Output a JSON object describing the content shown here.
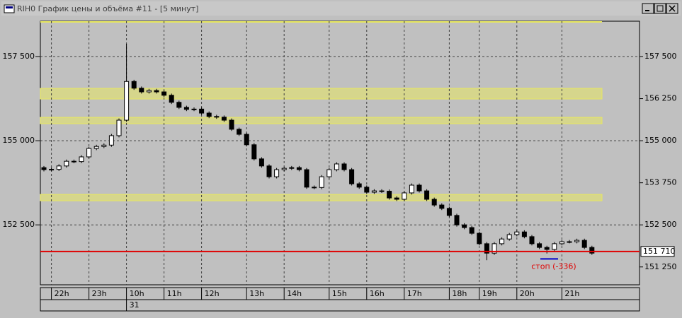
{
  "window": {
    "title": "RIH0 График цены и объёма #11 - [5 минут]"
  },
  "chart_data": {
    "type": "candlestick",
    "categories": [
      null,
      "22h",
      null,
      null,
      null,
      null,
      "23h",
      null,
      null,
      null,
      null,
      "10h",
      null,
      null,
      null,
      null,
      "11h",
      null,
      null,
      null,
      null,
      "12h",
      null,
      null,
      null,
      null,
      null,
      "13h",
      null,
      null,
      null,
      null,
      "14h",
      null,
      null,
      null,
      null,
      null,
      "15h",
      null,
      null,
      null,
      null,
      "16h",
      null,
      null,
      null,
      null,
      "17h",
      null,
      null,
      null,
      null,
      null,
      "18h",
      null,
      null,
      null,
      "19h",
      null,
      null,
      null,
      null,
      "20h",
      null,
      null,
      null,
      null,
      null,
      "21h",
      null,
      null,
      null,
      null
    ],
    "dates": [
      null,
      null,
      null,
      null,
      null,
      null,
      null,
      null,
      null,
      null,
      null,
      "31",
      null,
      null,
      null,
      null,
      null,
      null,
      null,
      null,
      null,
      null,
      null,
      null,
      null,
      null,
      null,
      null,
      null,
      null,
      null,
      null,
      null,
      null,
      null,
      null,
      null,
      null,
      null,
      null,
      null,
      null,
      null,
      null,
      null,
      null,
      null,
      null,
      null,
      null,
      null,
      null,
      null,
      null,
      null,
      null,
      null,
      null,
      null,
      null,
      null,
      null,
      null,
      null,
      null,
      null,
      null,
      null,
      null,
      null,
      null,
      null,
      null,
      null
    ],
    "open": [
      154200,
      154140,
      154150,
      154250,
      154390,
      154380,
      154520,
      154770,
      154830,
      154870,
      155150,
      155610,
      156760,
      156560,
      156450,
      156490,
      156450,
      156350,
      156140,
      155990,
      155930,
      155940,
      155820,
      155720,
      155700,
      155610,
      155340,
      155190,
      154880,
      154460,
      154250,
      153930,
      154140,
      154180,
      154200,
      154140,
      153620,
      153610,
      153930,
      154140,
      154310,
      154140,
      153720,
      153620,
      153470,
      153510,
      153500,
      153300,
      153260,
      153450,
      153680,
      153510,
      153260,
      153090,
      152990,
      152780,
      152500,
      152420,
      152250,
      151940,
      151660,
      151940,
      152080,
      152210,
      152290,
      152150,
      151940,
      151830,
      151770,
      151940,
      152000,
      152000,
      152040,
      151830
    ],
    "high": [
      154250,
      154200,
      154300,
      154440,
      154440,
      154570,
      154820,
      154880,
      154920,
      155200,
      155660,
      157880,
      156810,
      156610,
      156540,
      156540,
      156500,
      156400,
      156190,
      156040,
      155990,
      155990,
      155870,
      155770,
      155750,
      155660,
      155390,
      155240,
      154930,
      154510,
      154300,
      154190,
      154230,
      154250,
      154250,
      154190,
      153670,
      153980,
      154190,
      154360,
      154360,
      154190,
      153770,
      153670,
      153560,
      153560,
      153550,
      153350,
      153500,
      153730,
      153730,
      153560,
      153310,
      153140,
      153040,
      152830,
      152550,
      152470,
      152300,
      151990,
      151990,
      152130,
      152260,
      152340,
      152340,
      152200,
      151990,
      151880,
      151990,
      152050,
      152050,
      152090,
      152090,
      151880
    ],
    "low": [
      154090,
      154090,
      154100,
      154200,
      154330,
      154330,
      154470,
      154720,
      154780,
      154820,
      155100,
      155560,
      156510,
      156400,
      156400,
      156400,
      156300,
      156090,
      155940,
      155880,
      155880,
      155770,
      155670,
      155650,
      155560,
      155290,
      155140,
      154830,
      154410,
      154200,
      153880,
      153880,
      154090,
      154130,
      154090,
      153570,
      153560,
      153560,
      153880,
      154090,
      154090,
      153670,
      153570,
      153420,
      153420,
      153450,
      153250,
      153210,
      153210,
      153400,
      153460,
      153210,
      153040,
      152940,
      152730,
      152450,
      152370,
      152200,
      151890,
      151450,
      151610,
      151890,
      152030,
      152160,
      152100,
      151890,
      151780,
      151650,
      151720,
      151890,
      151950,
      151950,
      151780,
      151610
    ],
    "close": [
      154140,
      154150,
      154250,
      154390,
      154380,
      154520,
      154770,
      154830,
      154870,
      155150,
      155610,
      156760,
      156560,
      156450,
      156490,
      156450,
      156350,
      156140,
      155990,
      155930,
      155940,
      155820,
      155720,
      155700,
      155610,
      155340,
      155190,
      154880,
      154460,
      154250,
      153930,
      154140,
      154180,
      154200,
      154140,
      153620,
      153610,
      153930,
      154140,
      154310,
      154140,
      153720,
      153620,
      153470,
      153510,
      153500,
      153300,
      153260,
      153450,
      153680,
      153510,
      153260,
      153090,
      152990,
      152780,
      152500,
      152420,
      152250,
      151940,
      151660,
      151940,
      152080,
      152210,
      152290,
      152150,
      151940,
      151830,
      151770,
      151940,
      152000,
      152000,
      152040,
      151830,
      151660
    ],
    "ylim": [
      150720,
      158550
    ],
    "yticks": [
      {
        "value": 157500,
        "label": "157 500"
      },
      {
        "value": 155000,
        "label": "155 000"
      },
      {
        "value": 152500,
        "label": "152 500"
      }
    ],
    "y2lim": [
      150720,
      158550
    ],
    "y2ticks": [
      {
        "value": 157500,
        "label": "157 500"
      },
      {
        "value": 156250,
        "label": "156 250"
      },
      {
        "value": 155000,
        "label": "155 000"
      },
      {
        "value": 153750,
        "label": "153 750"
      },
      {
        "value": 152500,
        "label": "152 500"
      },
      {
        "value": 151250,
        "label": "151 250"
      }
    ],
    "grid": true,
    "bands": [
      {
        "low": 156240,
        "high": 156555
      },
      {
        "low": 155505,
        "high": 155694
      },
      {
        "low": 153216,
        "high": 153405
      }
    ],
    "band_color": "#e8e860",
    "current_line": {
      "value": 151710,
      "label": "151 710",
      "color": "#e00000"
    },
    "stop_line": {
      "value": 151490,
      "color": "#0000cc"
    },
    "annotation": "стоп (-336)"
  }
}
